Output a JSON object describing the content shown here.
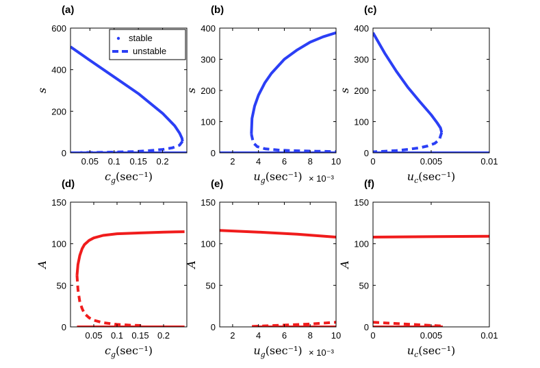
{
  "colors": {
    "blue": "#2b3ff5",
    "red": "#f01c1c",
    "axis": "#000000"
  },
  "legend": {
    "stable": "stable",
    "unstable": "unstable"
  },
  "chart_data": [
    {
      "panel": "(a)",
      "type": "line",
      "color": "blue",
      "xlabel": "c_g(sec⁻¹)",
      "ylabel": "s",
      "xlim": [
        0.01,
        0.25
      ],
      "ylim": [
        0,
        600
      ],
      "xticks": [
        0.05,
        0.1,
        0.15,
        0.2
      ],
      "xticklabels": [
        "0.05",
        "0.1",
        "0.15",
        "0.2"
      ],
      "yticks": [
        0,
        200,
        400,
        600
      ],
      "yticklabels": [
        "0",
        "200",
        "400",
        "600"
      ],
      "legend": true,
      "series": [
        {
          "name": "stable",
          "style": "solid",
          "x": [
            0.01,
            0.05,
            0.1,
            0.15,
            0.2,
            0.225,
            0.235,
            0.24,
            0.241
          ],
          "y": [
            510,
            445,
            365,
            285,
            190,
            130,
            95,
            70,
            55
          ]
        },
        {
          "name": "unstable",
          "style": "dashed",
          "x": [
            0.241,
            0.235,
            0.22,
            0.2,
            0.17,
            0.14,
            0.11,
            0.08,
            0.05,
            0.03
          ],
          "y": [
            55,
            37,
            24,
            16,
            10,
            6,
            4,
            2.5,
            1.5,
            1
          ]
        },
        {
          "name": "stable-zero",
          "style": "solid",
          "x": [
            0.01,
            0.25
          ],
          "y": [
            0,
            0
          ]
        }
      ]
    },
    {
      "panel": "(b)",
      "type": "line",
      "color": "blue",
      "xlabel": "u_g(sec⁻¹)",
      "ylabel": "s",
      "multiplier": "× 10⁻³",
      "xlim": [
        1,
        10
      ],
      "ylim": [
        0,
        400
      ],
      "xticks": [
        2,
        4,
        6,
        8,
        10
      ],
      "xticklabels": [
        "2",
        "4",
        "6",
        "8",
        "10"
      ],
      "yticks": [
        0,
        100,
        200,
        300,
        400
      ],
      "yticklabels": [
        "0",
        "100",
        "200",
        "300",
        "400"
      ],
      "series": [
        {
          "name": "stable",
          "style": "solid",
          "x": [
            3.45,
            3.5,
            3.7,
            4,
            4.5,
            5,
            6,
            7,
            8,
            9,
            10
          ],
          "y": [
            60,
            110,
            150,
            185,
            225,
            255,
            300,
            330,
            355,
            372,
            385
          ]
        },
        {
          "name": "unstable",
          "style": "dashed",
          "x": [
            3.45,
            3.6,
            3.9,
            4.5,
            5.5,
            6.5,
            7.5,
            8.5,
            10
          ],
          "y": [
            60,
            32,
            20,
            13,
            9,
            7,
            6,
            5,
            4
          ]
        },
        {
          "name": "stable-zero",
          "style": "solid",
          "x": [
            1,
            10
          ],
          "y": [
            0,
            0
          ]
        }
      ]
    },
    {
      "panel": "(c)",
      "type": "line",
      "color": "blue",
      "xlabel": "u_c(sec⁻¹)",
      "ylabel": "s",
      "xlim": [
        0,
        0.01
      ],
      "ylim": [
        0,
        400
      ],
      "xticks": [
        0,
        0.005,
        0.01
      ],
      "xticklabels": [
        "0",
        "0.005",
        "0.01"
      ],
      "yticks": [
        0,
        100,
        200,
        300,
        400
      ],
      "yticklabels": [
        "0",
        "100",
        "200",
        "300",
        "400"
      ],
      "series": [
        {
          "name": "stable",
          "style": "solid",
          "x": [
            0,
            0.001,
            0.002,
            0.003,
            0.004,
            0.005,
            0.0055,
            0.0058,
            0.0059
          ],
          "y": [
            385,
            320,
            262,
            210,
            165,
            122,
            97,
            80,
            65
          ]
        },
        {
          "name": "unstable",
          "style": "dashed",
          "x": [
            0.0059,
            0.0057,
            0.0053,
            0.0047,
            0.004,
            0.003,
            0.002,
            0.001,
            0
          ],
          "y": [
            65,
            42,
            30,
            22,
            16,
            11,
            7,
            5,
            3
          ]
        },
        {
          "name": "stable-zero",
          "style": "solid",
          "x": [
            0,
            0.01
          ],
          "y": [
            0,
            0
          ]
        }
      ]
    },
    {
      "panel": "(d)",
      "type": "line",
      "color": "red",
      "xlabel": "c_g(sec⁻¹)",
      "ylabel": "A",
      "xlim": [
        0,
        0.25
      ],
      "ylim": [
        0,
        150
      ],
      "xticks": [
        0.05,
        0.1,
        0.15,
        0.2
      ],
      "xticklabels": [
        "0.05",
        "0.1",
        "0.15",
        "0.2"
      ],
      "yticks": [
        0,
        50,
        100,
        150
      ],
      "yticklabels": [
        "0",
        "50",
        "100",
        "150"
      ],
      "series": [
        {
          "name": "stable",
          "style": "solid",
          "x": [
            0.014,
            0.016,
            0.02,
            0.025,
            0.03,
            0.04,
            0.05,
            0.07,
            0.1,
            0.15,
            0.2,
            0.245
          ],
          "y": [
            62,
            75,
            86,
            94,
            99,
            104,
            107,
            110,
            112,
            113,
            114,
            114.5
          ]
        },
        {
          "name": "unstable",
          "style": "dashed",
          "x": [
            0.014,
            0.016,
            0.02,
            0.025,
            0.03,
            0.04,
            0.05,
            0.07,
            0.1,
            0.13,
            0.16
          ],
          "y": [
            62,
            45,
            30,
            22,
            16,
            11,
            8,
            5,
            3,
            2,
            1.5
          ]
        },
        {
          "name": "stable-zero",
          "style": "solid",
          "x": [
            0.014,
            0.245
          ],
          "y": [
            0,
            0
          ]
        }
      ]
    },
    {
      "panel": "(e)",
      "type": "line",
      "color": "red",
      "xlabel": "u_g(sec⁻¹)",
      "ylabel": "A",
      "multiplier": "× 10⁻³",
      "xlim": [
        1,
        10
      ],
      "ylim": [
        0,
        150
      ],
      "xticks": [
        2,
        4,
        6,
        8,
        10
      ],
      "xticklabels": [
        "2",
        "4",
        "6",
        "8",
        "10"
      ],
      "yticks": [
        0,
        50,
        100,
        150
      ],
      "yticklabels": [
        "0",
        "50",
        "100",
        "150"
      ],
      "series": [
        {
          "name": "stable",
          "style": "solid",
          "x": [
            1,
            4,
            7,
            10
          ],
          "y": [
            116,
            114,
            111.5,
            108
          ]
        },
        {
          "name": "unstable",
          "style": "dashed",
          "x": [
            3.5,
            5,
            6.5,
            8,
            9,
            10
          ],
          "y": [
            0.5,
            1.5,
            2.5,
            3.5,
            4.5,
            5.5
          ]
        },
        {
          "name": "stable-zero",
          "style": "solid",
          "x": [
            3.5,
            10
          ],
          "y": [
            0,
            0
          ]
        }
      ]
    },
    {
      "panel": "(f)",
      "type": "line",
      "color": "red",
      "xlabel": "u_c(sec⁻¹)",
      "ylabel": "A",
      "xlim": [
        0,
        0.01
      ],
      "ylim": [
        0,
        150
      ],
      "xticks": [
        0,
        0.005,
        0.01
      ],
      "xticklabels": [
        "0",
        "0.005",
        "0.01"
      ],
      "yticks": [
        0,
        50,
        100,
        150
      ],
      "yticklabels": [
        "0",
        "50",
        "100",
        "150"
      ],
      "series": [
        {
          "name": "stable",
          "style": "solid",
          "x": [
            0,
            0.01
          ],
          "y": [
            108,
            109
          ]
        },
        {
          "name": "unstable",
          "style": "dashed",
          "x": [
            0,
            0.002,
            0.004,
            0.006
          ],
          "y": [
            5.5,
            4,
            2.5,
            1
          ]
        },
        {
          "name": "stable-zero",
          "style": "solid",
          "x": [
            0,
            0.006
          ],
          "y": [
            0,
            0
          ]
        }
      ]
    }
  ]
}
